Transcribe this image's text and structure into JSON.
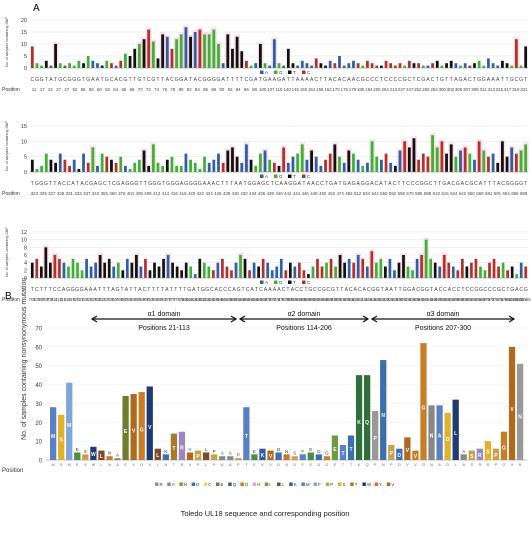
{
  "panel_a_label": "A",
  "panel_b_label": "B",
  "colors": {
    "A": "#2e5fa8",
    "G": "#3db234",
    "T": "#111111",
    "C": "#b5302a",
    "pink": "#f6c9d6"
  },
  "chart_data": [
    {
      "type": "bar",
      "panel": "A-row1",
      "ylabel": "No. of samples containing SNP",
      "ylim": [
        0,
        20
      ],
      "yticks": [
        0,
        5,
        10,
        15,
        20
      ],
      "sequence": "CGGTATGCGGGTGAATGCACGTTGTCGTTACGGATACGGGGATTTTCGATGAAGATTAAAACTTACACAACGCCCTCCCCGCTCGACTGTTAGACTGGAAATTGCGT",
      "position_label": "Position",
      "positions": [
        "11",
        "17",
        "22",
        "27",
        "47",
        "52",
        "56",
        "58",
        "60",
        "62",
        "64",
        "66",
        "68",
        "70",
        "72",
        "74",
        "76",
        "78",
        "80",
        "82",
        "84",
        "86",
        "88",
        "90",
        "92",
        "94",
        "96",
        "98",
        "100",
        "107",
        "115",
        "140",
        "145",
        "150",
        "154",
        "156",
        "162",
        "170",
        "176",
        "179",
        "185",
        "194",
        "200",
        "204",
        "213",
        "237",
        "247",
        "252",
        "265",
        "294",
        "300",
        "303",
        "305",
        "307",
        "309",
        "311",
        "313",
        "315",
        "317",
        "319",
        "321"
      ],
      "values": [
        9,
        2,
        1,
        3,
        1,
        10,
        2,
        1,
        2,
        1,
        3,
        2,
        5,
        3,
        2,
        1,
        3,
        2,
        1,
        3,
        6,
        5,
        8,
        10,
        12,
        16,
        11,
        4,
        14,
        13,
        8,
        12,
        14,
        17,
        13,
        15,
        16,
        14,
        14,
        16,
        10,
        2,
        14,
        8,
        13,
        7,
        3,
        1,
        2,
        10,
        2,
        1,
        12,
        2,
        1,
        8,
        2,
        1,
        3,
        2,
        1,
        4,
        2,
        1,
        3,
        2,
        5,
        1,
        2,
        3,
        2,
        1,
        3,
        2,
        1,
        1,
        3,
        2,
        1,
        2,
        1,
        3,
        2,
        2,
        1,
        1,
        2,
        3,
        1,
        2,
        3,
        2,
        1,
        2,
        1,
        2,
        3,
        1,
        4,
        2,
        1,
        3,
        2,
        1,
        12,
        1,
        9
      ]
    },
    {
      "type": "bar",
      "panel": "A-row2",
      "ylabel": "No. of samples containing SNP",
      "ylim": [
        0,
        15
      ],
      "yticks": [
        0,
        5,
        10,
        15
      ],
      "sequence": "TGGGTTACCATACGAGCTCGAGGGTTGGGTGGGAGGGGAAACTTTAATGGAGCTCAAGGATAACCTGATGAGAGGACATACTTCCCGGCTTGACGACGCATTTACGGGGT",
      "position_label": "Position",
      "positions": [
        "323",
        "325",
        "327",
        "329",
        "331",
        "333",
        "337",
        "342",
        "355",
        "360",
        "370",
        "404",
        "408",
        "409",
        "412",
        "414",
        "416",
        "418",
        "420",
        "422",
        "424",
        "426",
        "428",
        "430",
        "432",
        "434",
        "436",
        "438",
        "440",
        "442",
        "444",
        "446",
        "448",
        "450",
        "452",
        "474",
        "492",
        "512",
        "534",
        "542",
        "550",
        "552",
        "558",
        "570",
        "585",
        "588",
        "610",
        "615",
        "624",
        "642",
        "660",
        "669",
        "681",
        "691",
        "694",
        "696",
        "698"
      ],
      "values": [
        4,
        1,
        2,
        6,
        4,
        3,
        6,
        4,
        2,
        4,
        1,
        6,
        3,
        8,
        2,
        6,
        5,
        4,
        3,
        5,
        2,
        1,
        3,
        4,
        7,
        2,
        9,
        3,
        2,
        4,
        5,
        2,
        2,
        6,
        4,
        3,
        1,
        5,
        3,
        4,
        6,
        3,
        7,
        8,
        5,
        3,
        9,
        4,
        2,
        6,
        7,
        4,
        3,
        2,
        8,
        3,
        5,
        6,
        9,
        4,
        7,
        5,
        2,
        4,
        6,
        9,
        5,
        3,
        7,
        6,
        4,
        2,
        3,
        10,
        5,
        4,
        6,
        3,
        2,
        7,
        10,
        8,
        11,
        4,
        6,
        5,
        12,
        8,
        10,
        6,
        9,
        5,
        7,
        8,
        6,
        4,
        10,
        7,
        5,
        6,
        3,
        10,
        5,
        8,
        6,
        7,
        9
      ]
    },
    {
      "type": "bar",
      "panel": "A-row3",
      "ylabel": "No. of samples containing SNP",
      "ylim": [
        0,
        12
      ],
      "yticks": [
        0,
        2,
        4,
        6,
        8,
        10,
        12
      ],
      "sequence": "TCTTTCCAGGGGAAATTTAGTATTACTTTTATTTTGATGGCACCCAGTCATCAAAACTACCTGCCGCGTTACACACGGTAATTGGACGGTACCACCTCCGGCCCGCTGACG",
      "position_label": "Position",
      "positions": [
        "701",
        "703",
        "705",
        "707",
        "709",
        "711",
        "713",
        "715",
        "716",
        "718",
        "720",
        "722",
        "724",
        "726",
        "728",
        "730",
        "732",
        "734",
        "736",
        "740",
        "745",
        "750",
        "752",
        "754",
        "756",
        "758",
        "760",
        "762",
        "764",
        "766",
        "768",
        "770",
        "772",
        "774",
        "776",
        "800",
        "810",
        "815",
        "820",
        "822",
        "823",
        "825",
        "830",
        "840",
        "844",
        "848",
        "850",
        "854",
        "858",
        "860",
        "862",
        "864",
        "866",
        "868",
        "870",
        "872",
        "874",
        "876",
        "878",
        "880",
        "882",
        "884",
        "886",
        "888",
        "890",
        "892",
        "894",
        "896",
        "898",
        "900",
        "902",
        "904",
        "906",
        "908",
        "910",
        "912",
        "914",
        "916",
        "918",
        "920",
        "922",
        "924",
        "926",
        "928",
        "930",
        "932",
        "934",
        "936",
        "938",
        "940",
        "942",
        "944",
        "946",
        "948",
        "950",
        "952",
        "954",
        "956",
        "958",
        "960",
        "962",
        "964",
        "966",
        "968",
        "970",
        "972",
        "974",
        "976",
        "978",
        "980",
        "1006",
        "1026",
        "1031",
        "1066"
      ],
      "values": [
        4,
        5,
        3,
        8,
        4,
        6,
        5,
        4,
        3,
        5,
        4,
        2,
        5,
        3,
        4,
        6,
        4,
        5,
        3,
        4,
        2,
        5,
        4,
        6,
        3,
        5,
        2,
        4,
        3,
        5,
        6,
        4,
        3,
        2,
        4,
        3,
        1,
        5,
        4,
        3,
        2,
        4,
        5,
        3,
        2,
        4,
        6,
        5,
        2,
        4,
        3,
        5,
        4,
        2,
        3,
        5,
        2,
        4,
        3,
        4,
        2,
        1,
        3,
        5,
        3,
        4,
        5,
        3,
        6,
        4,
        5,
        4,
        6,
        5,
        3,
        7,
        4,
        5,
        3,
        5,
        2,
        4,
        6,
        3,
        2,
        5,
        6,
        10,
        5,
        4,
        3,
        6,
        4,
        3,
        2,
        5,
        3,
        4,
        5,
        3,
        2,
        4,
        5,
        3,
        4,
        2,
        3,
        1,
        4,
        3
      ]
    },
    {
      "type": "bar",
      "panel": "B",
      "ylabel": "No. of samples containing nonsynonymous mutation",
      "xlabel": "Toledo UL18 sequence and corresponding position",
      "position_label": "Position",
      "ylim": [
        0,
        70
      ],
      "yticks": [
        0,
        10,
        20,
        30,
        40,
        50,
        60,
        70
      ],
      "domains": [
        {
          "name": "α1 domain",
          "range": "Positions 21-113"
        },
        {
          "name": "α2 domain",
          "range": "Positions 114-206"
        },
        {
          "name": "α3 domain",
          "range": "Positions 207-300"
        }
      ],
      "legend": [
        "R",
        "A",
        "N",
        "D",
        "C",
        "E",
        "Q",
        "G",
        "H",
        "I",
        "L",
        "K",
        "M",
        "F",
        "P",
        "S",
        "T",
        "W",
        "Y",
        "V"
      ],
      "bars": [
        {
          "aa": "M",
          "value": 28,
          "color": "#5b7fc4"
        },
        {
          "aa": "S",
          "value": 24,
          "color": "#e0b22a"
        },
        {
          "aa": "M",
          "value": 41,
          "color": "#7ea6d8"
        },
        {
          "aa": "E",
          "value": 4,
          "color": "#4a8f3f"
        },
        {
          "aa": "S",
          "value": 3,
          "color": "#c8a04a"
        },
        {
          "aa": "W",
          "value": 7,
          "color": "#1f3b73"
        },
        {
          "aa": "L",
          "value": 5,
          "color": "#7c4a2a"
        },
        {
          "aa": "N",
          "value": 2,
          "color": "#c47a2a"
        },
        {
          "aa": "A",
          "value": 1,
          "color": "#888888"
        },
        {
          "aa": "E",
          "value": 34,
          "color": "#6f7b2e"
        },
        {
          "aa": "V",
          "value": 35,
          "color": "#b06a1e"
        },
        {
          "aa": "G",
          "value": 36,
          "color": "#c97d25"
        },
        {
          "aa": "V",
          "value": 39,
          "color": "#1f3b73"
        },
        {
          "aa": "L",
          "value": 6,
          "color": "#7c4a2a"
        },
        {
          "aa": "N",
          "value": 3,
          "color": "#3d6fb0"
        },
        {
          "aa": "T",
          "value": 14,
          "color": "#a8782c"
        },
        {
          "aa": "R",
          "value": 15,
          "color": "#9b87c0"
        },
        {
          "aa": "V",
          "value": 4,
          "color": "#b06a1e"
        },
        {
          "aa": "P",
          "value": 5,
          "color": "#c8a04a"
        },
        {
          "aa": "L",
          "value": 4,
          "color": "#7c4a2a"
        },
        {
          "aa": "P",
          "value": 3,
          "color": "#c8a04a"
        },
        {
          "aa": "A",
          "value": 2,
          "color": "#888888"
        },
        {
          "aa": "A",
          "value": 2,
          "color": "#888888"
        },
        {
          "aa": "P",
          "value": 1,
          "color": "#c8a04a"
        },
        {
          "aa": "T",
          "value": 28,
          "color": "#5b7fc4"
        },
        {
          "aa": "E",
          "value": 3,
          "color": "#4a8f3f"
        },
        {
          "aa": "K",
          "value": 6,
          "color": "#2a5da6"
        },
        {
          "aa": "V",
          "value": 5,
          "color": "#b06a1e"
        },
        {
          "aa": "D",
          "value": 4,
          "color": "#3d6fb0"
        },
        {
          "aa": "N",
          "value": 3,
          "color": "#c47a2a"
        },
        {
          "aa": "S",
          "value": 2,
          "color": "#c8a04a"
        },
        {
          "aa": "F",
          "value": 3,
          "color": "#5b7fc4"
        },
        {
          "aa": "E",
          "value": 4,
          "color": "#4a8f3f"
        },
        {
          "aa": "D",
          "value": 3,
          "color": "#3d6fb0"
        },
        {
          "aa": "G",
          "value": 2,
          "color": "#c97d25"
        },
        {
          "aa": "E",
          "value": 13,
          "color": "#6f9a3f"
        },
        {
          "aa": "T",
          "value": 8,
          "color": "#5b7fc4"
        },
        {
          "aa": "T",
          "value": 13,
          "color": "#3d6fb0"
        },
        {
          "aa": "K",
          "value": 45,
          "color": "#2f6f3a"
        },
        {
          "aa": "Q",
          "value": 45,
          "color": "#2f6f3a"
        },
        {
          "aa": "P",
          "value": 26,
          "color": "#999999"
        },
        {
          "aa": "N",
          "value": 53,
          "color": "#3d6fb0"
        },
        {
          "aa": "P",
          "value": 8,
          "color": "#c8a04a"
        },
        {
          "aa": "D",
          "value": 6,
          "color": "#3d6fb0"
        },
        {
          "aa": "V",
          "value": 12,
          "color": "#b06a1e"
        },
        {
          "aa": "V",
          "value": 5,
          "color": "#c97d25"
        },
        {
          "aa": "G",
          "value": 62,
          "color": "#c97d25"
        },
        {
          "aa": "N",
          "value": 29,
          "color": "#888888"
        },
        {
          "aa": "A",
          "value": 29,
          "color": "#5b7fc4"
        },
        {
          "aa": "D",
          "value": 25,
          "color": "#e0b22a"
        },
        {
          "aa": "L",
          "value": 32,
          "color": "#1f3b73"
        },
        {
          "aa": "A",
          "value": 3,
          "color": "#888888"
        },
        {
          "aa": "S",
          "value": 5,
          "color": "#c8a04a"
        },
        {
          "aa": "R",
          "value": 6,
          "color": "#9b87c0"
        },
        {
          "aa": "S",
          "value": 10,
          "color": "#e0b22a"
        },
        {
          "aa": "P",
          "value": 6,
          "color": "#c8a04a"
        },
        {
          "aa": "G",
          "value": 15,
          "color": "#c97d25"
        },
        {
          "aa": "V",
          "value": 60,
          "color": "#b06a1e"
        },
        {
          "aa": "N",
          "value": 51,
          "color": "#999999"
        }
      ]
    }
  ]
}
